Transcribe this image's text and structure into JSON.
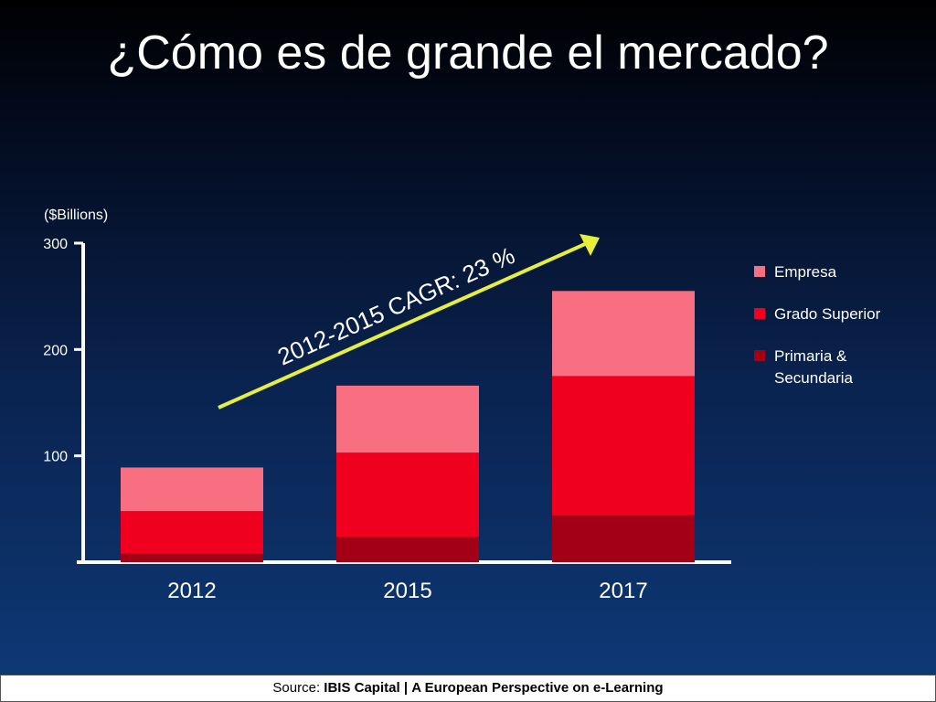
{
  "slide": {
    "title": "¿Cómo es de grande el mercado?"
  },
  "footer": {
    "source_label": "Source:",
    "source_org": "IBIS Capital",
    "separator": "|",
    "source_title": "A European Perspective on e-Learning"
  },
  "colors": {
    "empresa": "#f96f82",
    "grado_superior": "#f0001e",
    "primaria": "#a30018",
    "trend_arrow": "#e6f03c",
    "axis": "#ffffff"
  },
  "chart_data": {
    "type": "bar",
    "stacked": true,
    "unit_label": "($Billions)",
    "categories": [
      "2012",
      "2015",
      "2017"
    ],
    "ylim": [
      0,
      300
    ],
    "yticks": [
      100,
      200,
      300
    ],
    "series": [
      {
        "name": "Primaria & Secundaria",
        "values": [
          8,
          24,
          44
        ],
        "color": "#a30018"
      },
      {
        "name": "Grado Superior",
        "values": [
          40,
          79,
          131
        ],
        "color": "#f0001e"
      },
      {
        "name": "Empresa",
        "values": [
          41,
          63,
          80
        ],
        "color": "#f96f82"
      }
    ],
    "legend": {
      "placement": "right",
      "items": [
        "Empresa",
        "Grado Superior",
        "Primaria & Secundaria"
      ]
    },
    "annotation": {
      "text": "2012-2015 CAGR: 23 %",
      "from_category": "2012",
      "to_category": "2017"
    },
    "grid": false
  }
}
